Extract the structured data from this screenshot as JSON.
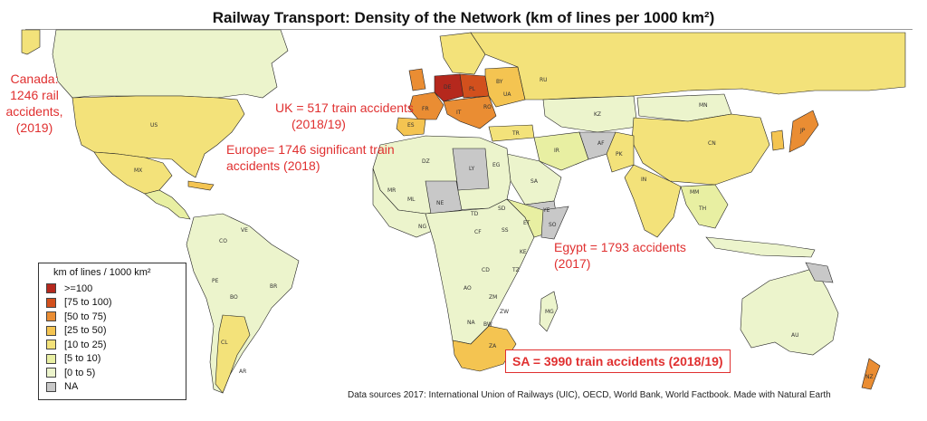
{
  "title": "Railway Transport: Density of the Network (km of lines per 1000 km²)",
  "colors": {
    "c100": "#b5281d",
    "c75": "#d2501d",
    "c50": "#ea8d33",
    "c25": "#f4c451",
    "c10": "#f3e27a",
    "c5": "#e8efa2",
    "c0": "#ecf4cc",
    "na": "#c8c8c8",
    "annotation": "#e03030"
  },
  "legend": {
    "title": "km of lines / 1000 km²",
    "items": [
      {
        "label": ">=100",
        "color": "#b5281d"
      },
      {
        "label": "[75 to 100)",
        "color": "#d2501d"
      },
      {
        "label": "[50 to 75)",
        "color": "#ea8d33"
      },
      {
        "label": "[25 to 50)",
        "color": "#f4c451"
      },
      {
        "label": "[10 to 25)",
        "color": "#f3e27a"
      },
      {
        "label": "[5 to 10)",
        "color": "#e8efa2"
      },
      {
        "label": "[0 to 5)",
        "color": "#ecf4cc"
      },
      {
        "label": "NA",
        "color": "#c8c8c8"
      }
    ]
  },
  "annotations": {
    "canada": [
      "Canada:",
      "1246 rail",
      "accidents,",
      "(2019)"
    ],
    "uk": [
      "UK = 517 train accidents",
      "(2018/19)"
    ],
    "europe": [
      "Europe= 1746 significant train",
      "accidents (2018)"
    ],
    "egypt": [
      "Egypt = 1793 accidents",
      "(2017)"
    ],
    "sa": "SA = 3990 train accidents (2018/19)"
  },
  "country_codes": {
    "us": "US",
    "mx": "MX",
    "ru": "RU",
    "cn": "CN",
    "in": "IN",
    "br": "BR",
    "ar": "AR",
    "au": "AU",
    "kz": "KZ",
    "mn": "MN",
    "fr": "FR",
    "de": "DE",
    "pl": "PL",
    "by": "BY",
    "ua": "UA",
    "es": "ES",
    "tr": "TR",
    "ir": "IR",
    "sa": "SA",
    "eg": "EG",
    "dz": "DZ",
    "ly": "LY",
    "ne": "NE",
    "td": "TD",
    "sd": "SD",
    "et": "ET",
    "ng": "NG",
    "cd": "CD",
    "ao": "AO",
    "za": "ZA",
    "mg": "MG",
    "pe": "PE",
    "bo": "BO",
    "co": "CO",
    "ve": "VE",
    "cl": "CL",
    "jp": "JP",
    "th": "TH",
    "mm": "MM",
    "pk": "PK",
    "af": "AF",
    "nz": "NZ",
    "it": "IT",
    "ro": "RO",
    "mr": "MR",
    "ml": "ML",
    "zm": "ZM",
    "tz": "TZ",
    "ke": "KE",
    "na": "NA",
    "bw": "BW",
    "zw": "ZW",
    "ye": "YE",
    "ly2": "LY",
    "ss": "SS",
    "so": "SO",
    "cf": "CF"
  },
  "footer": "Data sources 2017: International Union of Railways (UIC), OECD, World Bank, World Factbook. Made with Natural Earth"
}
